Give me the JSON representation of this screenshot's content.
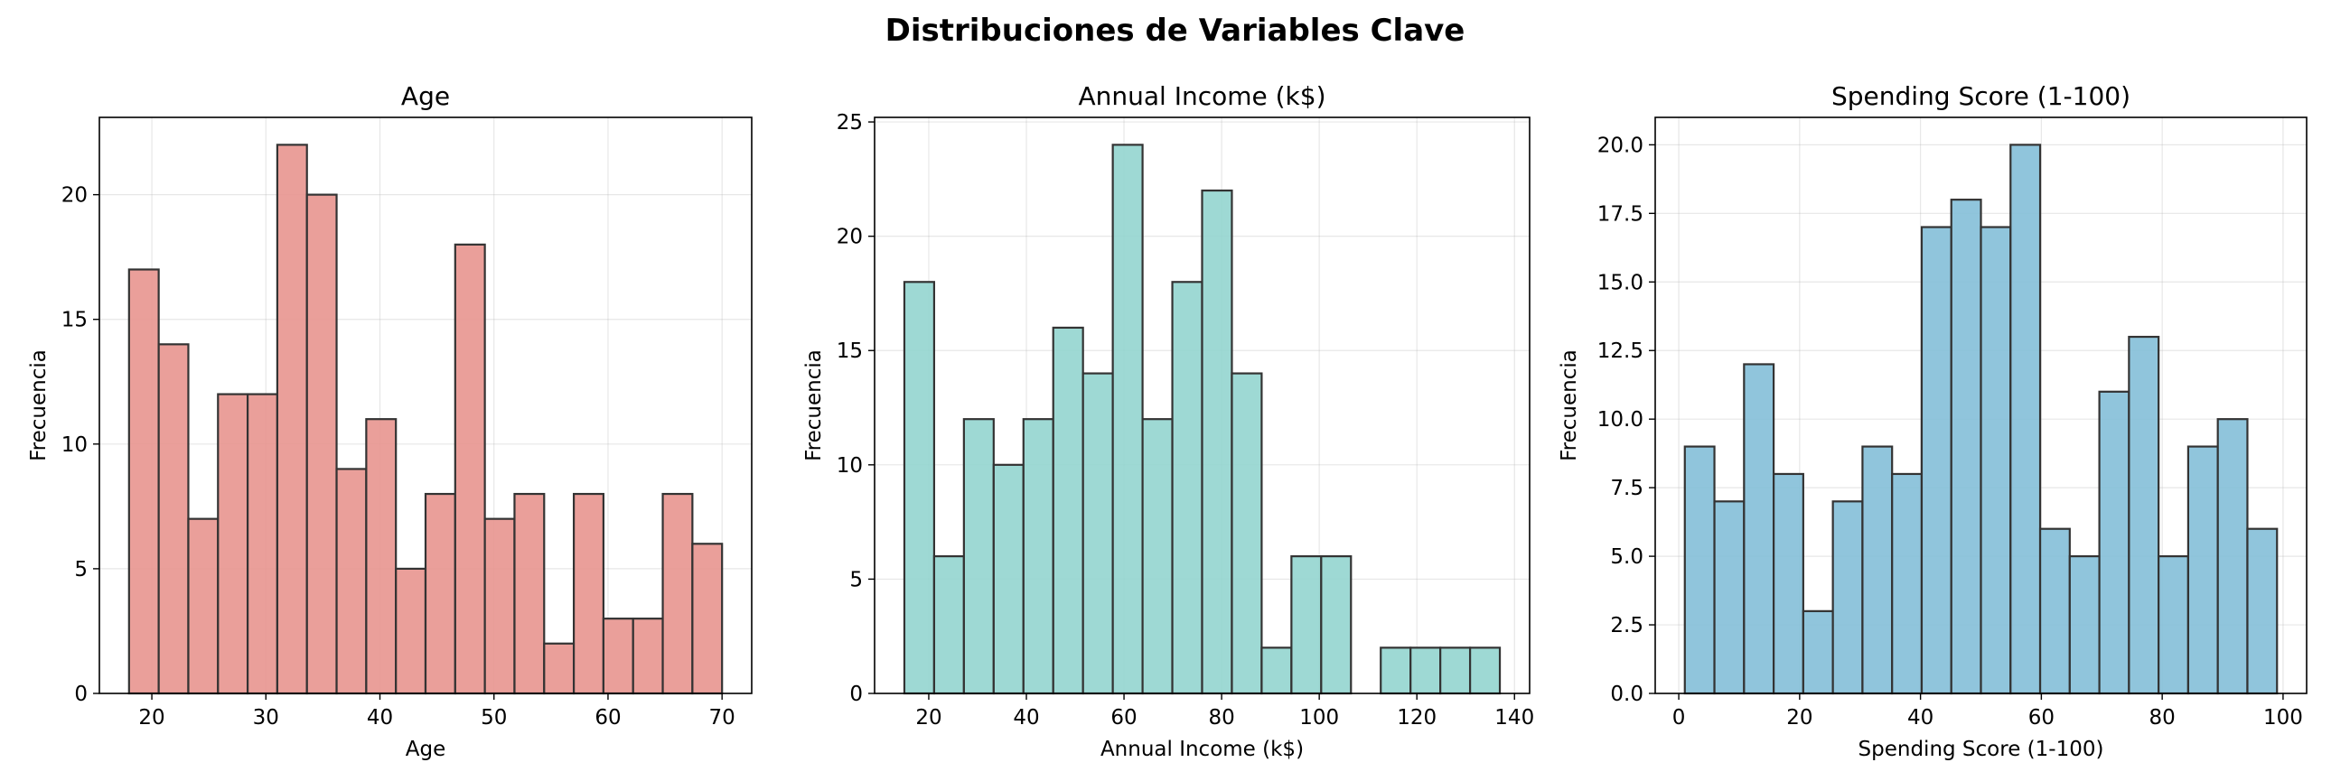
{
  "figure": {
    "title": "Distribuciones de Variables Clave"
  },
  "chart_data": [
    {
      "type": "bar",
      "title": "Age",
      "xlabel": "Age",
      "ylabel": "Frecuencia",
      "color": "#e8958f",
      "bin_edges": [
        18,
        20.6,
        23.2,
        25.8,
        28.4,
        31,
        33.6,
        36.2,
        38.8,
        41.4,
        44,
        46.6,
        49.2,
        51.8,
        54.4,
        57,
        59.6,
        62.2,
        64.8,
        67.4,
        70
      ],
      "values": [
        17,
        14,
        7,
        12,
        12,
        22,
        20,
        9,
        11,
        5,
        8,
        18,
        7,
        8,
        2,
        8,
        3,
        3,
        8,
        6
      ],
      "xlim": [
        15.4,
        72.6
      ],
      "ylim": [
        0,
        23.1
      ],
      "xticks": [
        20,
        30,
        40,
        50,
        60,
        70
      ],
      "xtick_labels": [
        "20",
        "30",
        "40",
        "50",
        "60",
        "70"
      ],
      "yticks": [
        0,
        5,
        10,
        15,
        20
      ],
      "ytick_labels": [
        "0",
        "5",
        "10",
        "15",
        "20"
      ],
      "grid": true
    },
    {
      "type": "bar",
      "title": "Annual Income (k$)",
      "xlabel": "Annual Income (k$)",
      "ylabel": "Frecuencia",
      "color": "#93d5cf",
      "bin_edges": [
        15,
        21.1,
        27.2,
        33.3,
        39.4,
        45.5,
        51.6,
        57.7,
        63.8,
        69.9,
        76,
        82.1,
        88.2,
        94.3,
        100.4,
        106.5,
        112.6,
        118.7,
        124.8,
        130.9,
        137
      ],
      "values": [
        18,
        6,
        12,
        10,
        12,
        16,
        14,
        24,
        12,
        18,
        22,
        14,
        2,
        6,
        6,
        0,
        2,
        2,
        2,
        2
      ],
      "xlim": [
        8.9,
        143.1
      ],
      "ylim": [
        0,
        25.2
      ],
      "xticks": [
        20,
        40,
        60,
        80,
        100,
        120,
        140
      ],
      "xtick_labels": [
        "20",
        "40",
        "60",
        "80",
        "100",
        "120",
        "140"
      ],
      "yticks": [
        0,
        5,
        10,
        15,
        20,
        25
      ],
      "ytick_labels": [
        "0",
        "5",
        "10",
        "15",
        "20",
        "25"
      ],
      "grid": true
    },
    {
      "type": "bar",
      "title": "Spending Score (1-100)",
      "xlabel": "Spending Score (1-100)",
      "ylabel": "Frecuencia",
      "color": "#84bfd8",
      "bin_edges": [
        1,
        5.9,
        10.8,
        15.7,
        20.6,
        25.5,
        30.4,
        35.3,
        40.2,
        45.1,
        50,
        54.9,
        59.8,
        64.7,
        69.6,
        74.5,
        79.4,
        84.3,
        89.2,
        94.1,
        99
      ],
      "values": [
        9,
        7,
        12,
        8,
        3,
        7,
        9,
        8,
        17,
        18,
        17,
        20,
        6,
        5,
        11,
        13,
        5,
        9,
        10,
        6
      ],
      "xlim": [
        -3.9,
        103.9
      ],
      "ylim": [
        0,
        21
      ],
      "xticks": [
        0,
        20,
        40,
        60,
        80,
        100
      ],
      "xtick_labels": [
        "0",
        "20",
        "40",
        "60",
        "80",
        "100"
      ],
      "yticks": [
        0,
        2.5,
        5,
        7.5,
        10,
        12.5,
        15,
        17.5,
        20
      ],
      "ytick_labels": [
        "0.0",
        "2.5",
        "5.0",
        "7.5",
        "10.0",
        "12.5",
        "15.0",
        "17.5",
        "20.0"
      ],
      "grid": true
    }
  ]
}
